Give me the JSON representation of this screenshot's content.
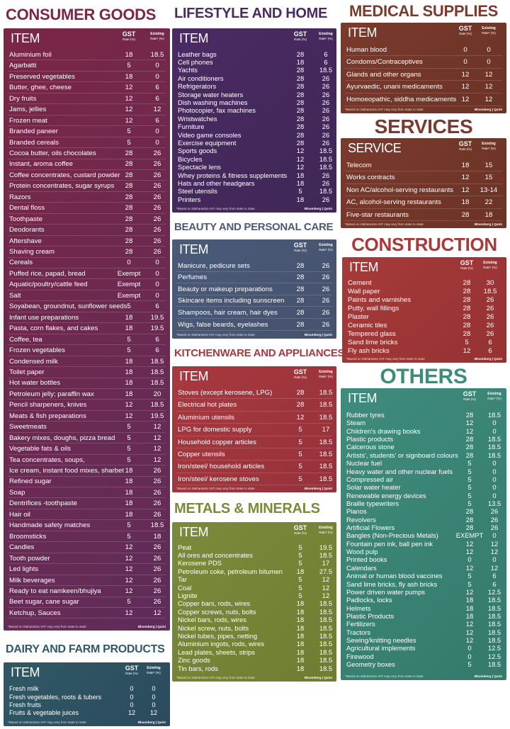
{
  "labels": {
    "gst": "GST",
    "gst_unit": "Rate (%)",
    "existing": "Existing",
    "existing_unit": "Rate* (%)",
    "footnote": "*Based on Maharastra VAT may vary from state to state",
    "source": "Bloomberg | Quint"
  },
  "sections": [
    {
      "title": "CONSUMER GOODS",
      "item_header": "ITEM",
      "rows": [
        [
          "Aluminium foil",
          18,
          18.5
        ],
        [
          "Agarbatti",
          5,
          0
        ],
        [
          "Preserved vegetables",
          18,
          0
        ],
        [
          "Butter, ghee, cheese",
          12,
          6
        ],
        [
          "Dry fruits",
          12,
          6
        ],
        [
          "Jams, jellies",
          12,
          12
        ],
        [
          "Frozen meat",
          12,
          6
        ],
        [
          "Branded paneer",
          5,
          0
        ],
        [
          "Branded cereals",
          5,
          0
        ],
        [
          "Cocoa butter, oils chocolates",
          28,
          26
        ],
        [
          "Instant, aroma coffee",
          28,
          26
        ],
        [
          "Coffee concentrates, custard powder",
          28,
          26
        ],
        [
          "Protein concentrates, sugar syrups",
          28,
          26
        ],
        [
          "Razors",
          28,
          26
        ],
        [
          "Dental floss",
          28,
          26
        ],
        [
          "Toothpaste",
          28,
          26
        ],
        [
          "Deodorants",
          28,
          26
        ],
        [
          "Aftershave",
          28,
          26
        ],
        [
          "Shaving cream",
          28,
          26
        ],
        [
          "Cereals",
          0,
          0
        ],
        [
          "Puffed rice, papad, bread",
          "Exempt",
          0
        ],
        [
          "Aquatic/poultry/cattle feed",
          "Exempt",
          0
        ],
        [
          "Salt",
          "Exempt",
          0
        ],
        [
          "Soyabean, groundnut, sunflower seeds",
          5,
          6
        ],
        [
          "Infant use preparations",
          18,
          19.5
        ],
        [
          "Pasta, corn flakes, and cakes",
          18,
          19.5
        ],
        [
          "Coffee, tea",
          5,
          6
        ],
        [
          "Frozen vegetables",
          5,
          6
        ],
        [
          "Condensed milk",
          18,
          18.5
        ],
        [
          "Toilet paper",
          18,
          18.5
        ],
        [
          "Hot water bottles",
          18,
          18.5
        ],
        [
          "Petroleum jelly; paraffin wax",
          18,
          20
        ],
        [
          "Pencil sharpeners, knives",
          12,
          18.5
        ],
        [
          "Meats & fish preparations",
          12,
          19.5
        ],
        [
          "Sweetmeats",
          5,
          12
        ],
        [
          "Bakery mixes, doughs, pizza bread",
          5,
          12
        ],
        [
          "Vegetable fats & oils",
          5,
          12
        ],
        [
          "Tea concentrates, soups,",
          5,
          12
        ],
        [
          "Ice cream, instant food mixes, sharbet",
          18,
          26
        ],
        [
          "Refined sugar",
          18,
          26
        ],
        [
          "Soap",
          18,
          26
        ],
        [
          "Dentrifices -toothpaste",
          18,
          26
        ],
        [
          "Hair oil",
          18,
          26
        ],
        [
          "Handmade safety matches",
          5,
          18.5
        ],
        [
          "Broomsticks",
          5,
          18
        ],
        [
          "Candles",
          12,
          26
        ],
        [
          "Tooth powder",
          12,
          26
        ],
        [
          "Led lights",
          12,
          26
        ],
        [
          "Milk beverages",
          12,
          26
        ],
        [
          "Ready to eat namkeen/bhujiya",
          12,
          26
        ],
        [
          "Beet sugar, cane sugar",
          5,
          26
        ],
        [
          "Ketchup, Sauces",
          12,
          12
        ]
      ]
    },
    {
      "title": "DAIRY AND FARM PRODUCTS",
      "item_header": "ITEM",
      "rows": [
        [
          "Fresh milk",
          0,
          0
        ],
        [
          "Fresh vegetables, roots & tubers",
          0,
          0
        ],
        [
          "Fresh fruits",
          0,
          0
        ],
        [
          "Fruits & vegetable juices",
          12,
          12
        ]
      ]
    },
    {
      "title": "LIFESTYLE AND HOME",
      "item_header": "ITEM",
      "rows": [
        [
          "Leather bags",
          28,
          6
        ],
        [
          "Cell phones",
          18,
          6
        ],
        [
          "Yachts",
          28,
          18.5
        ],
        [
          "Air conditioners",
          28,
          26
        ],
        [
          "Refrigerators",
          28,
          26
        ],
        [
          "Storage water heaters",
          28,
          26
        ],
        [
          "Dish washing machines",
          28,
          26
        ],
        [
          "Photocopier, fax machines",
          28,
          26
        ],
        [
          "Wristwatches",
          28,
          26
        ],
        [
          "Furniture",
          28,
          26
        ],
        [
          "Video game consoles",
          28,
          26
        ],
        [
          "Exercise equipment",
          28,
          26
        ],
        [
          "Sports goods",
          12,
          18.5
        ],
        [
          "Bicycles",
          12,
          18.5
        ],
        [
          "Spectacle lens",
          12,
          18.5
        ],
        [
          "Whey proteins & fitness supplements",
          18,
          26
        ],
        [
          "Hats and other headgears",
          18,
          26
        ],
        [
          "Steel utensils",
          5,
          18.5
        ],
        [
          "Printers",
          18,
          26
        ]
      ]
    },
    {
      "title": "BEAUTY AND PERSONAL CARE",
      "item_header": "ITEM",
      "rows": [
        [
          "Manicure, pedicure sets",
          28,
          26
        ],
        [
          "Perfumes",
          28,
          26
        ],
        [
          "Beauty or makeup preparations",
          28,
          26
        ],
        [
          "Skincare items including sunscreen",
          28,
          26
        ],
        [
          "Shampoos, hair cream, hair dyes",
          28,
          26
        ],
        [
          "Wigs, false beards, eyelashes",
          28,
          26
        ]
      ]
    },
    {
      "title": "KITCHENWARE AND APPLIANCES",
      "item_header": "ITEM",
      "rows": [
        [
          "Stoves (except kerosene, LPG)",
          28,
          18.5
        ],
        [
          "Electrical hot plates",
          28,
          18.5
        ],
        [
          "Aluminium utensils",
          12,
          18.5
        ],
        [
          "LPG for domestic supply",
          5,
          17
        ],
        [
          "Household copper articles",
          5,
          18.5
        ],
        [
          "Copper utensils",
          5,
          18.5
        ],
        [
          "Iron/steel/ household articles",
          5,
          18.5
        ],
        [
          "Iron/steel/ kerosene stoves",
          5,
          18.5
        ]
      ]
    },
    {
      "title": "METALS & MINERALS",
      "item_header": "ITEM",
      "rows": [
        [
          "Peat",
          5,
          19.5
        ],
        [
          "All ores and concentrates",
          5,
          18.5
        ],
        [
          "Kerosene PDS",
          5,
          17
        ],
        [
          "Petroleum coke, petroleum bitumen",
          18,
          27.5
        ],
        [
          "Tar",
          5,
          12
        ],
        [
          "Coal",
          5,
          12
        ],
        [
          "Lignite",
          5,
          12
        ],
        [
          "Copper bars, rods, wires",
          18,
          18.5
        ],
        [
          "Copper screws, nuts, bolts",
          18,
          18.5
        ],
        [
          "Nickel bars, rods, wires",
          18,
          18.5
        ],
        [
          "Nickel screw, nuts, bolts",
          18,
          18.5
        ],
        [
          "Nickel tubes, pipes, netting",
          18,
          18.5
        ],
        [
          "Aluminium ingots, rods, wires",
          18,
          18.5
        ],
        [
          "Lead plates, sheets, strips",
          18,
          18.5
        ],
        [
          "Zinc goods",
          18,
          18.5
        ],
        [
          "Tin bars, rods",
          18,
          18.5
        ]
      ]
    },
    {
      "title": "MEDICAL SUPPLIES",
      "item_header": "ITEM",
      "rows": [
        [
          "Human blood",
          0,
          0
        ],
        [
          "Condoms/Contraceptives",
          0,
          0
        ],
        [
          "Glands and other organs",
          12,
          12
        ],
        [
          "Ayurvaedic, unani medicaments",
          12,
          12
        ],
        [
          "Homoeopathic, siddha medicaments",
          12,
          12
        ]
      ]
    },
    {
      "title": "SERVICES",
      "item_header": "SERVICE",
      "rows": [
        [
          "Telecom",
          18,
          15
        ],
        [
          "Works contracts",
          12,
          15
        ],
        [
          "Non AC/alcohol-serving restaurants",
          12,
          "13-14"
        ],
        [
          "AC, alcohol-serving restaurants",
          18,
          22
        ],
        [
          "Five-star restaurants",
          28,
          18
        ]
      ]
    },
    {
      "title": "CONSTRUCTION",
      "item_header": "ITEM",
      "rows": [
        [
          "Cement",
          28,
          30
        ],
        [
          "Wall paper",
          28,
          18.5
        ],
        [
          "Paints and varnishes",
          28,
          26
        ],
        [
          "Putty, wall fillings",
          28,
          26
        ],
        [
          "Plaster",
          28,
          26
        ],
        [
          "Ceramic tiles",
          28,
          26
        ],
        [
          "Tempered glass",
          28,
          26
        ],
        [
          "Sand lime bricks",
          5,
          6
        ],
        [
          "Fly ash bricks",
          12,
          6
        ]
      ]
    },
    {
      "title": "OTHERS",
      "item_header": "ITEM",
      "rows": [
        [
          "Rubber tyres",
          28,
          18.5
        ],
        [
          "Steam",
          12,
          0
        ],
        [
          "Children's drawing books",
          12,
          0
        ],
        [
          "Plastic products",
          28,
          18.5
        ],
        [
          "Calcerous stone",
          28,
          18.5
        ],
        [
          "Artists', students' or signboard colours",
          28,
          18.5
        ],
        [
          "Nuclear fuel",
          5,
          0
        ],
        [
          "Heavy water and other nuclear fuels",
          5,
          0
        ],
        [
          "Compressed air",
          5,
          0
        ],
        [
          "Solar water heater",
          5,
          0
        ],
        [
          "Renewable energy devices",
          5,
          0
        ],
        [
          "Braille typewriters",
          5,
          13.5
        ],
        [
          "Pianos",
          28,
          26
        ],
        [
          "Revolvers",
          28,
          26
        ],
        [
          "Artificial Flowers",
          28,
          26
        ],
        [
          "Bangles (Non-Precious Metals)",
          "EXEMPT",
          0
        ],
        [
          "Fountain pen ink, ball pen ink",
          12,
          12
        ],
        [
          "Wood pulp",
          12,
          12
        ],
        [
          "Printed books",
          0,
          0
        ],
        [
          "Calendars",
          12,
          12
        ],
        [
          "Animal or human blood vaccines",
          5,
          6
        ],
        [
          "Sand lime bricks, fly ash bricks",
          5,
          6
        ],
        [
          "Power driven water pumps",
          12,
          12.5
        ],
        [
          "Padlocks, locks",
          18,
          18.5
        ],
        [
          "Helmets",
          18,
          18.5
        ],
        [
          "Plastic Products",
          18,
          18.5
        ],
        [
          "Fertilizers",
          12,
          18.5
        ],
        [
          "Tractors",
          12,
          18.5
        ],
        [
          "Sewing/knitting needles",
          12,
          18.5
        ],
        [
          "Agricultural implements",
          0,
          12.5
        ],
        [
          "Firewood",
          0,
          12.5
        ],
        [
          "Geometry boxes",
          5,
          18.5
        ]
      ]
    }
  ]
}
